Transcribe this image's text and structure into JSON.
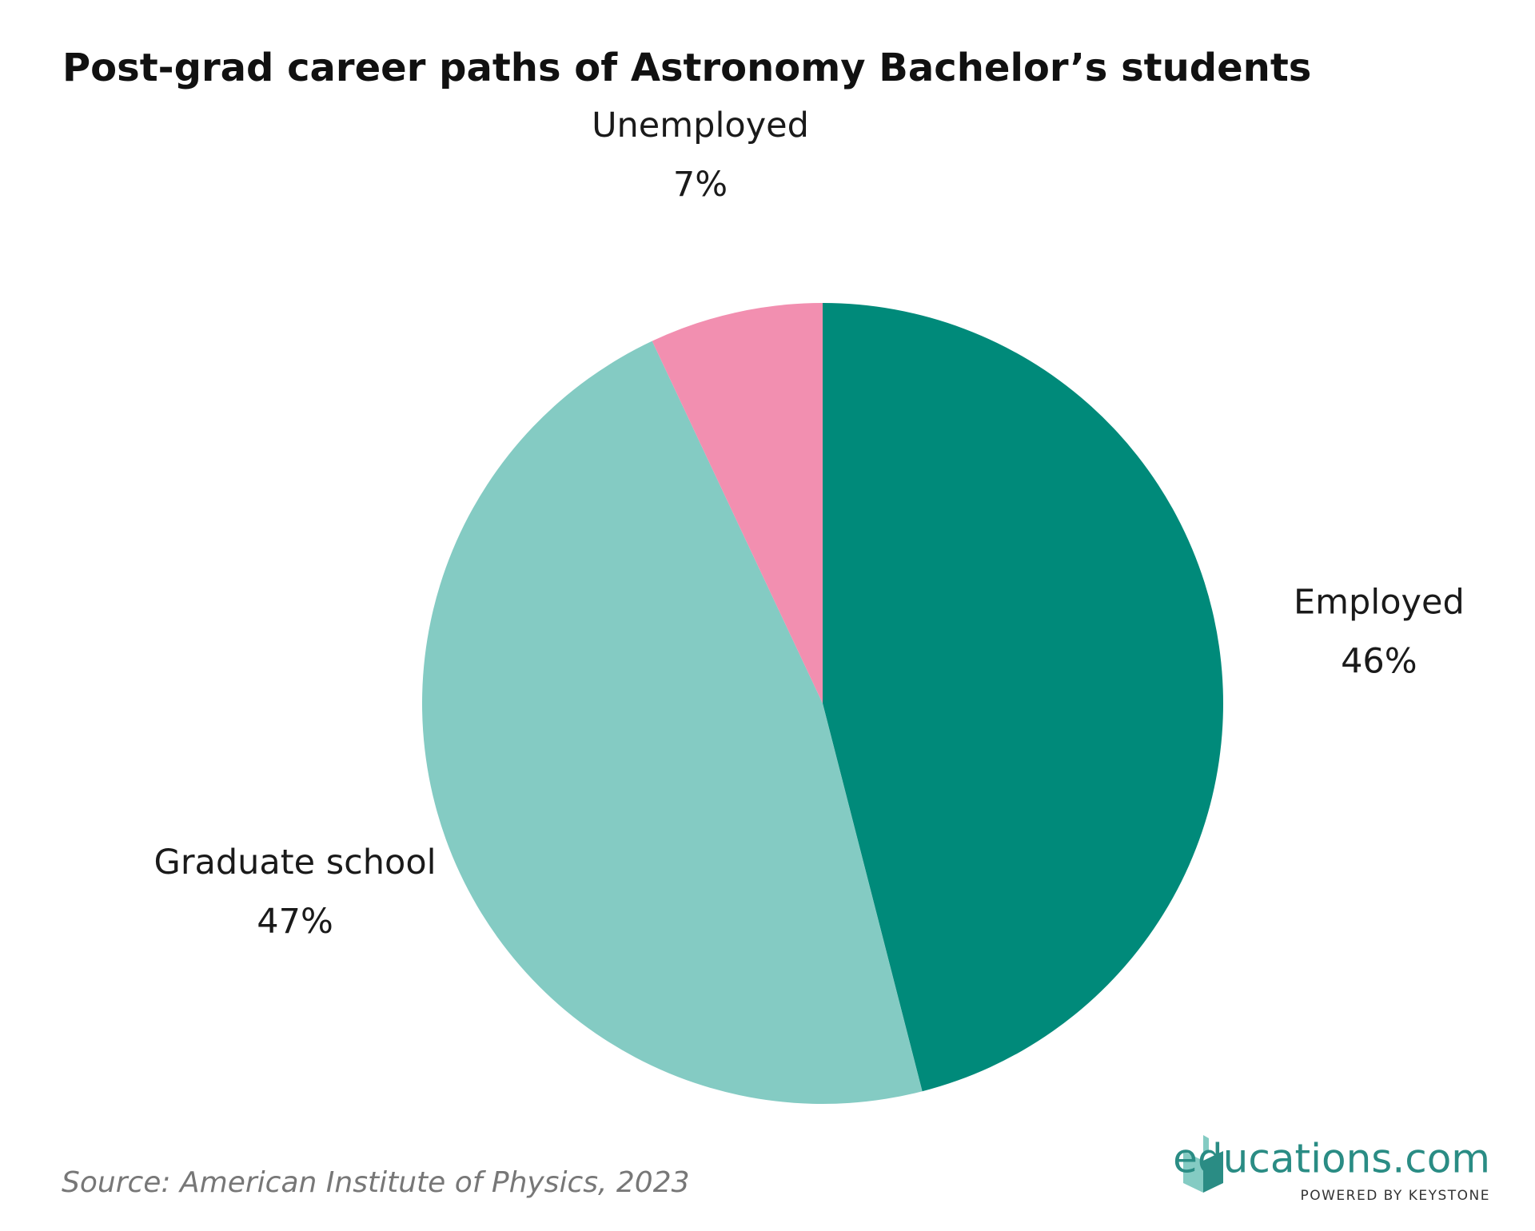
{
  "chart_data": {
    "type": "pie",
    "title": "Post-grad career paths of Astronomy Bachelor’s students",
    "categories": [
      "Employed",
      "Graduate school",
      "Unemployed"
    ],
    "values": [
      46,
      47,
      7
    ],
    "value_labels": [
      "46%",
      "47%",
      "7%"
    ],
    "colors": [
      "#008a7a",
      "#84cbc3",
      "#f28fb0"
    ],
    "source": "Source: American Institute of Physics, 2023"
  },
  "brand": {
    "name": "educations.com",
    "tagline": "POWERED BY KEYSTONE"
  }
}
